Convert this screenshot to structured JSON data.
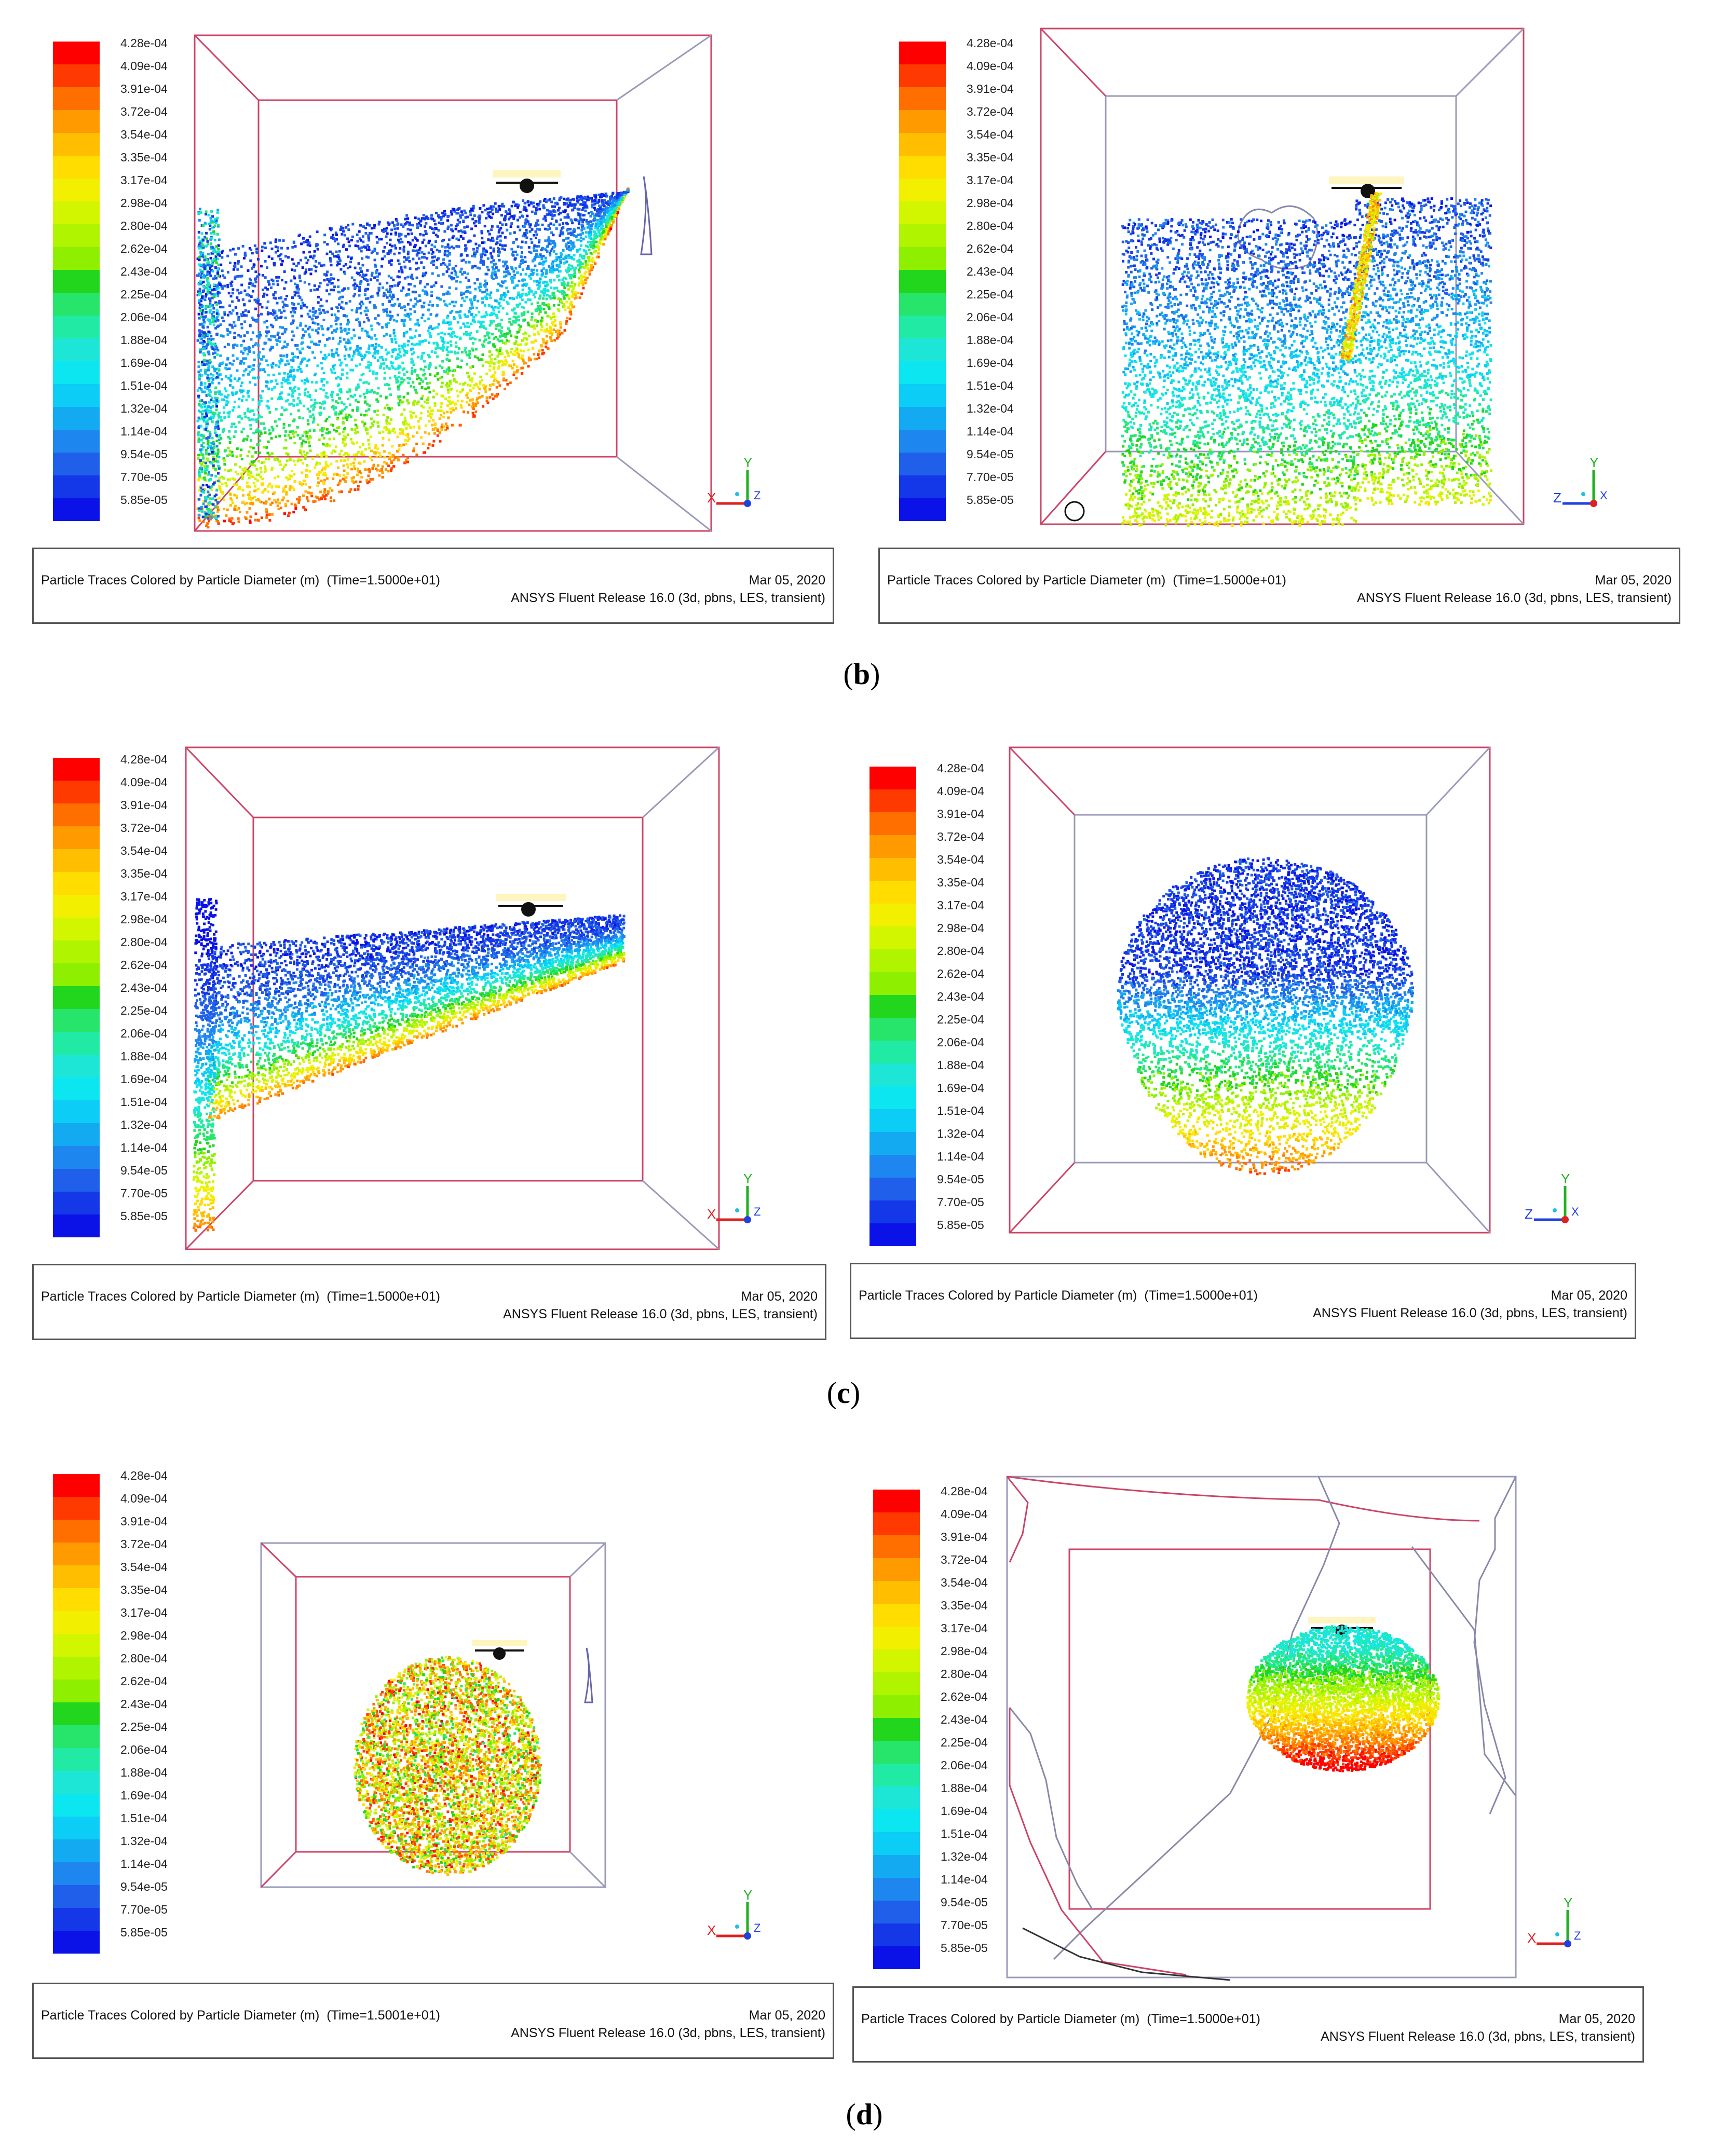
{
  "colorbar": {
    "title": "Particle Diameter (m)",
    "labels": [
      "4.28e-04",
      "4.09e-04",
      "3.91e-04",
      "3.72e-04",
      "3.54e-04",
      "3.35e-04",
      "3.17e-04",
      "2.98e-04",
      "2.80e-04",
      "2.62e-04",
      "2.43e-04",
      "2.25e-04",
      "2.06e-04",
      "1.88e-04",
      "1.69e-04",
      "1.51e-04",
      "1.32e-04",
      "1.14e-04",
      "9.54e-05",
      "7.70e-05",
      "5.85e-05"
    ],
    "colors": [
      "#ff0000",
      "#ff3a00",
      "#ff6f00",
      "#ff9a00",
      "#ffbe00",
      "#ffdd00",
      "#f2f000",
      "#d2f500",
      "#b0f400",
      "#8ef000",
      "#22d61e",
      "#26e56a",
      "#20eaa4",
      "#1ee6d6",
      "#0ce6f0",
      "#0bcdf5",
      "#14aaf2",
      "#1e86ef",
      "#1f5fea",
      "#1437e8",
      "#0a12e8"
    ]
  },
  "panels": [
    {
      "id": "b-left",
      "axis": {
        "h": "X",
        "v": "Y",
        "d": "Z"
      },
      "info": {
        "title": "Particle Traces Colored by Particle Diameter (m)",
        "time": "(Time=1.5000e+01)",
        "date": "Mar 05, 2020",
        "release": "ANSYS Fluent Release 16.0 (3d, pbns, LES, transient)"
      }
    },
    {
      "id": "b-right",
      "axis": {
        "h": "Z",
        "v": "Y",
        "d": "X"
      },
      "info": {
        "title": "Particle Traces Colored by Particle Diameter (m)",
        "time": "(Time=1.5000e+01)",
        "date": "Mar 05, 2020",
        "release": "ANSYS Fluent Release 16.0 (3d, pbns, LES, transient)"
      }
    },
    {
      "id": "c-left",
      "axis": {
        "h": "X",
        "v": "Y",
        "d": "Z"
      },
      "info": {
        "title": "Particle Traces Colored by Particle Diameter (m)",
        "time": "(Time=1.5000e+01)",
        "date": "Mar 05, 2020",
        "release": "ANSYS Fluent Release 16.0 (3d, pbns, LES, transient)"
      }
    },
    {
      "id": "c-right",
      "axis": {
        "h": "Z",
        "v": "Y",
        "d": "X"
      },
      "info": {
        "title": "Particle Traces Colored by Particle Diameter (m)",
        "time": "(Time=1.5000e+01)",
        "date": "Mar 05, 2020",
        "release": "ANSYS Fluent Release 16.0 (3d, pbns, LES, transient)"
      }
    },
    {
      "id": "d-left",
      "axis": {
        "h": "X",
        "v": "Y",
        "d": "Z"
      },
      "info": {
        "title": "Particle Traces Colored by Particle Diameter (m)",
        "time": "(Time=1.5001e+01)",
        "date": "Mar 05, 2020",
        "release": "ANSYS Fluent Release 16.0 (3d, pbns, LES, transient)"
      }
    },
    {
      "id": "d-right",
      "axis": {
        "h": "X",
        "v": "Y",
        "d": "Z"
      },
      "info": {
        "title": "Particle Traces Colored by Particle Diameter (m)",
        "time": "(Time=1.5000e+01)",
        "date": "Mar 05, 2020",
        "release": "ANSYS Fluent Release 16.0 (3d, pbns, LES, transient)"
      }
    }
  ],
  "captions": {
    "b": "b",
    "c": "c",
    "d": "d"
  }
}
